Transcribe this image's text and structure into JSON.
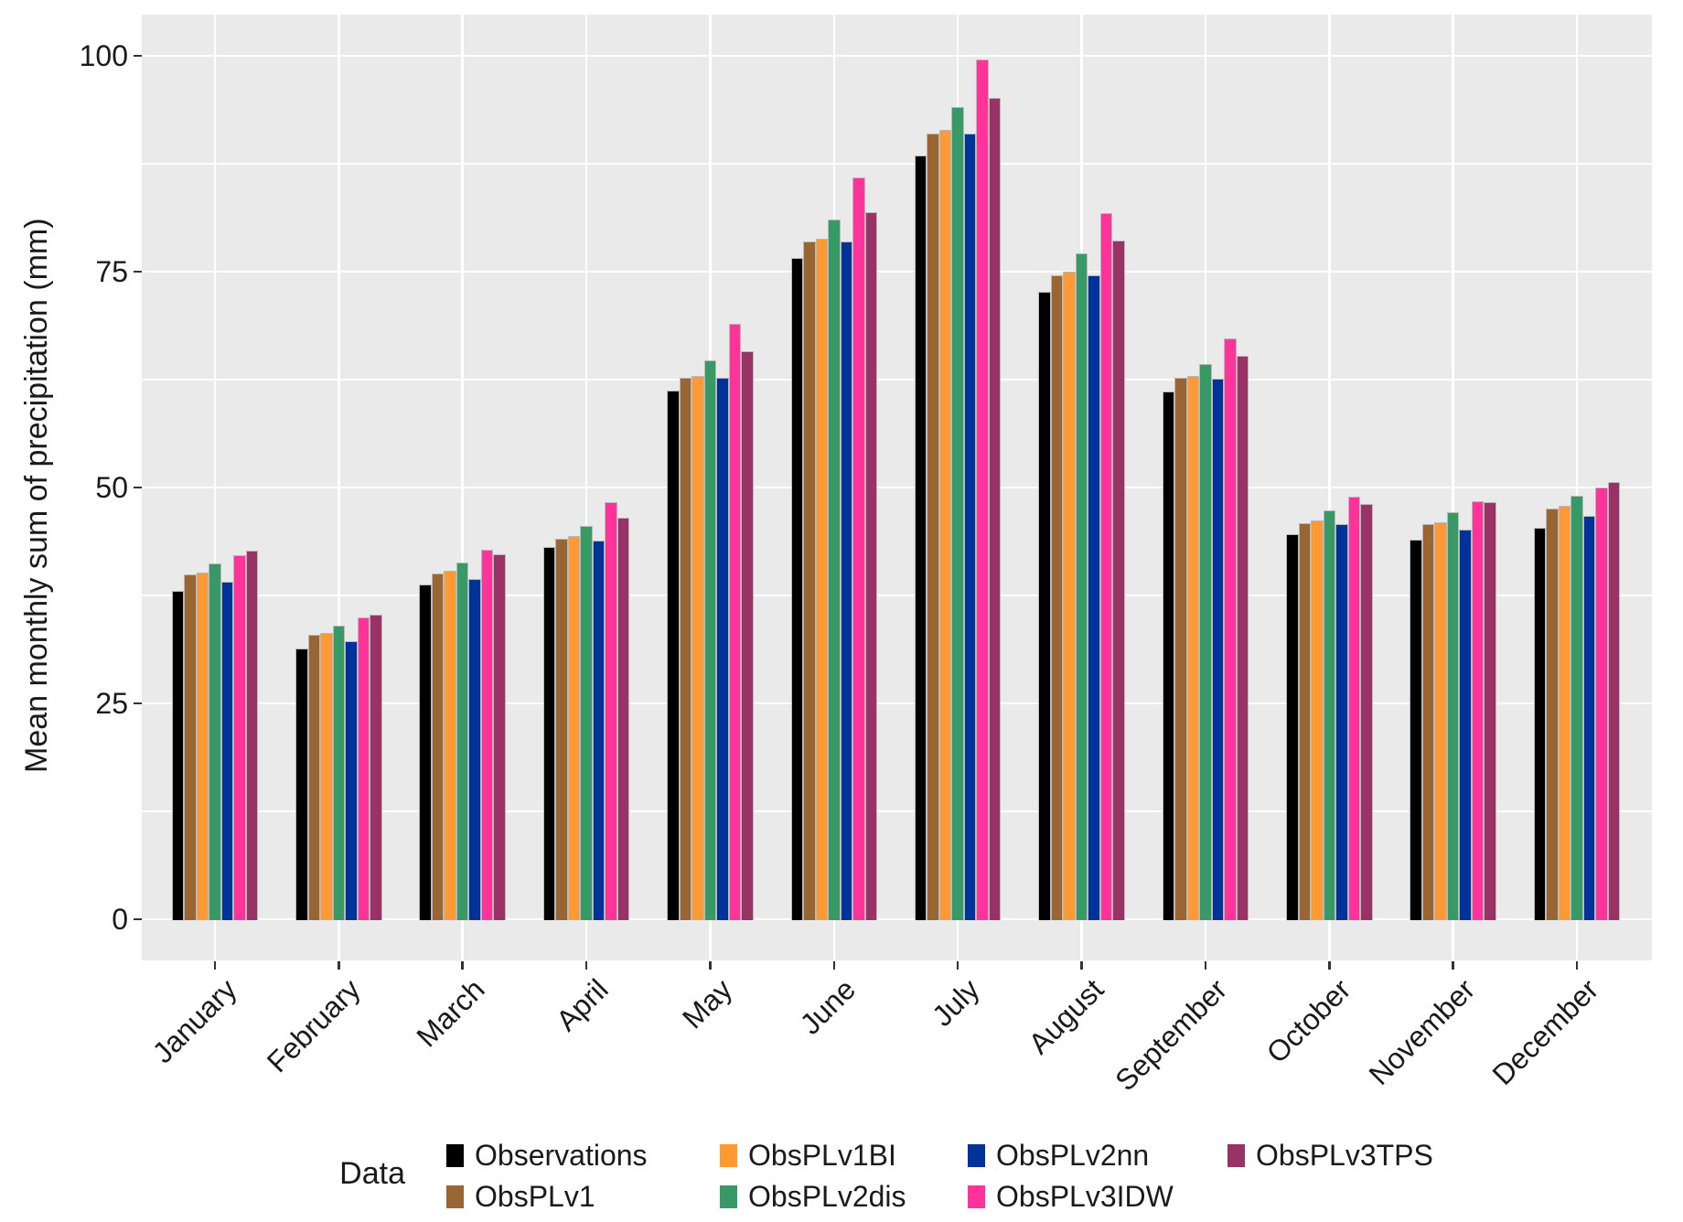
{
  "colors": {
    "panel_bg": "#EAEAEA",
    "gridline": "#FFFFFF",
    "bar_border": "#B9B9B9",
    "text": "#1A1A1A"
  },
  "chart_data": {
    "type": "bar",
    "title": "",
    "xlabel": "",
    "ylabel": "Mean monthly sum of precipitation (mm)",
    "legend_title": "Data",
    "legend_position": "bottom",
    "grid": true,
    "ylim": [
      0,
      100
    ],
    "yticks": [
      0,
      25,
      50,
      75,
      100
    ],
    "minor_gridlines": [
      12.5,
      37.5,
      62.5,
      87.5
    ],
    "categories": [
      "January",
      "February",
      "March",
      "April",
      "May",
      "June",
      "July",
      "August",
      "September",
      "October",
      "November",
      "December"
    ],
    "series": [
      {
        "name": "Observations",
        "color": "#000000",
        "values": [
          38.0,
          31.4,
          38.8,
          43.1,
          61.2,
          76.6,
          88.5,
          72.7,
          61.1,
          44.6,
          44.0,
          45.3
        ]
      },
      {
        "name": "ObsPLv1",
        "color": "#996633",
        "values": [
          39.9,
          32.9,
          40.0,
          44.1,
          62.7,
          78.5,
          91.0,
          74.6,
          62.7,
          45.9,
          45.8,
          47.6
        ]
      },
      {
        "name": "ObsPLv1BI",
        "color": "#FF9933",
        "values": [
          40.1,
          33.2,
          40.4,
          44.4,
          62.9,
          78.8,
          91.4,
          75.0,
          62.9,
          46.2,
          46.0,
          47.9
        ]
      },
      {
        "name": "ObsPLv2dis",
        "color": "#379966",
        "values": [
          41.2,
          34.0,
          41.3,
          45.6,
          64.7,
          81.0,
          94.1,
          77.1,
          64.3,
          47.4,
          47.1,
          49.0
        ]
      },
      {
        "name": "ObsPLv2nn",
        "color": "#003399",
        "values": [
          39.1,
          32.2,
          39.4,
          43.9,
          62.7,
          78.5,
          91.0,
          74.6,
          62.6,
          45.8,
          45.1,
          46.7
        ]
      },
      {
        "name": "ObsPLv3IDW",
        "color": "#FF3399",
        "values": [
          42.2,
          35.0,
          42.8,
          48.3,
          69.0,
          85.9,
          99.6,
          81.8,
          67.3,
          48.9,
          48.4,
          50.0
        ]
      },
      {
        "name": "ObsPLv3TPS",
        "color": "#993366",
        "values": [
          42.7,
          35.3,
          42.3,
          46.5,
          65.8,
          81.9,
          95.1,
          78.6,
          65.3,
          48.1,
          48.3,
          50.6
        ]
      }
    ]
  }
}
